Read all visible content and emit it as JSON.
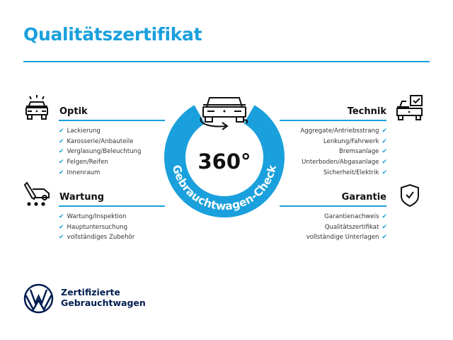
{
  "header": {
    "title": "Qualitätszertifikat"
  },
  "badge": {
    "big_text": "360°",
    "ring_text": "Gebrauchtwagen-Check"
  },
  "sections": {
    "optik": {
      "title": "Optik",
      "icon": "car-lights-icon",
      "items": [
        "Lackierung",
        "Karosserie/Anbauteile",
        "Verglasung/Beleuchtung",
        "Felgen/Reifen",
        "Innenraum"
      ]
    },
    "wartung": {
      "title": "Wartung",
      "icon": "service-car-icon",
      "items": [
        "Wartung/Inspektion",
        "Hauptuntersuchung",
        "vollständiges Zubehör"
      ]
    },
    "technik": {
      "title": "Technik",
      "icon": "car-checkbox-icon",
      "items": [
        "Aggregate/Antriebsstrang",
        "Lenkung/Fahrwerk",
        "Bremsanlage",
        "Unterboden/Abgasanlage",
        "Sicherheit/Elektrik"
      ]
    },
    "garantie": {
      "title": "Garantie",
      "icon": "shield-check-icon",
      "items": [
        "Garantienachweis",
        "Qualitätszertifikat",
        "vollständige Unterlagen"
      ]
    }
  },
  "check_mark": "✔",
  "brand": {
    "line1": "Zertifizierte",
    "line2": "Gebrauchtwagen",
    "logo": "VW"
  },
  "colors": {
    "accent": "#1aa0dc",
    "brand_navy": "#001e50"
  }
}
